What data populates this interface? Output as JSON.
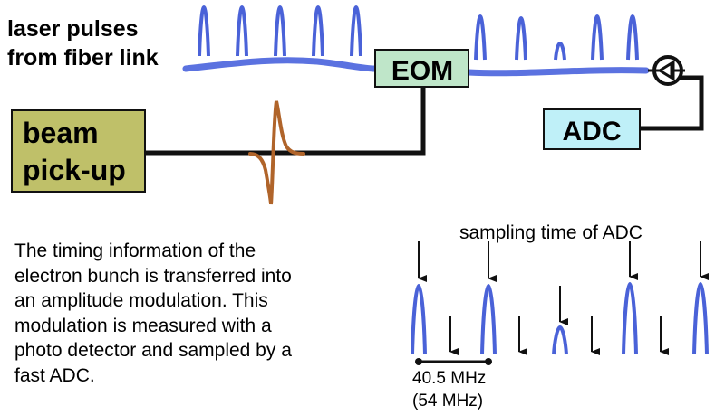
{
  "labels": {
    "laser_line1": "laser pulses",
    "laser_line2": "from fiber link",
    "eom": "EOM",
    "adc": "ADC",
    "pickup_line1": "beam",
    "pickup_line2": "pick-up",
    "sampling_time": "sampling time of ADC",
    "freq_primary": "40.5 MHz",
    "freq_alt": "(54 MHz)"
  },
  "description_lines": [
    "The timing information of the",
    "electron bunch is transferred into",
    "an amplitude modulation. This",
    "modulation is measured with a",
    "photo detector and sampled by a",
    "fast ADC."
  ],
  "colors": {
    "pulse": "#4a62d8",
    "fiber": "#5b72e0",
    "signal": "#b0642a",
    "eom_fill": "#bfe6c9",
    "adc_fill": "#bff0f8",
    "pickup_fill": "#bfc069",
    "wire": "#111111"
  }
}
